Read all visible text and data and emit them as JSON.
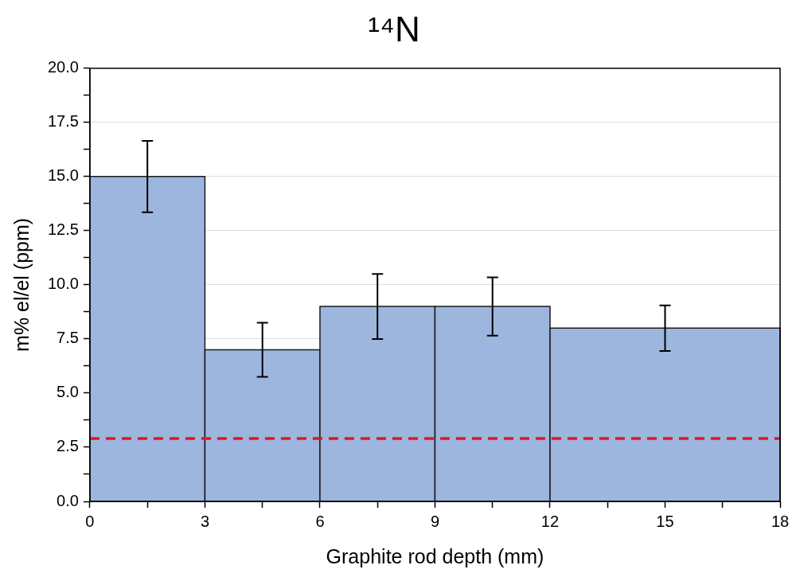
{
  "chart_data": {
    "type": "histogram",
    "title": "¹⁴N",
    "xlabel": "Graphite rod depth (mm)",
    "ylabel": "m% el/el (ppm)",
    "bins": [
      0,
      3,
      6,
      9,
      12,
      18
    ],
    "values": [
      15,
      7,
      9,
      9,
      8
    ],
    "errors": [
      1.65,
      1.25,
      1.5,
      1.35,
      1.05
    ],
    "color": "#9cb6de",
    "xlim": [
      0,
      18
    ],
    "xticks": [
      0,
      {
        "value": 1.5,
        "label": null
      },
      3,
      {
        "value": 4.5,
        "label": null
      },
      6,
      {
        "value": 7.5,
        "label": null
      },
      9,
      {
        "value": 10.5,
        "label": null
      },
      12,
      {
        "value": 13.5,
        "label": null
      },
      15,
      {
        "value": 16.5,
        "label": null
      },
      18
    ],
    "ylim": [
      0,
      20
    ],
    "yticks": [
      {
        "value": 0,
        "label": "0.0"
      },
      {
        "value": 1.25,
        "label": null
      },
      {
        "value": 2.5,
        "label": "2.5"
      },
      {
        "value": 3.75,
        "label": null
      },
      {
        "value": 5,
        "label": "5.0"
      },
      {
        "value": 6.25,
        "label": null
      },
      {
        "value": 7.5,
        "label": "7.5"
      },
      {
        "value": 8.75,
        "label": null
      },
      {
        "value": 10,
        "label": "10.0"
      },
      {
        "value": 11.25,
        "label": null
      },
      {
        "value": 12.5,
        "label": "12.5"
      },
      {
        "value": 13.75,
        "label": null
      },
      {
        "value": 15,
        "label": "15.0"
      },
      {
        "value": 16.25,
        "label": null
      },
      {
        "value": 17.5,
        "label": "17.5"
      },
      {
        "value": 18.75,
        "label": null
      },
      {
        "value": 20,
        "label": "20.0"
      }
    ],
    "grid": "y",
    "legend": false,
    "ref_lines": [
      {
        "axis": "y",
        "value": 2.9,
        "color": "#e8141c",
        "line_style": "dashed"
      }
    ]
  }
}
